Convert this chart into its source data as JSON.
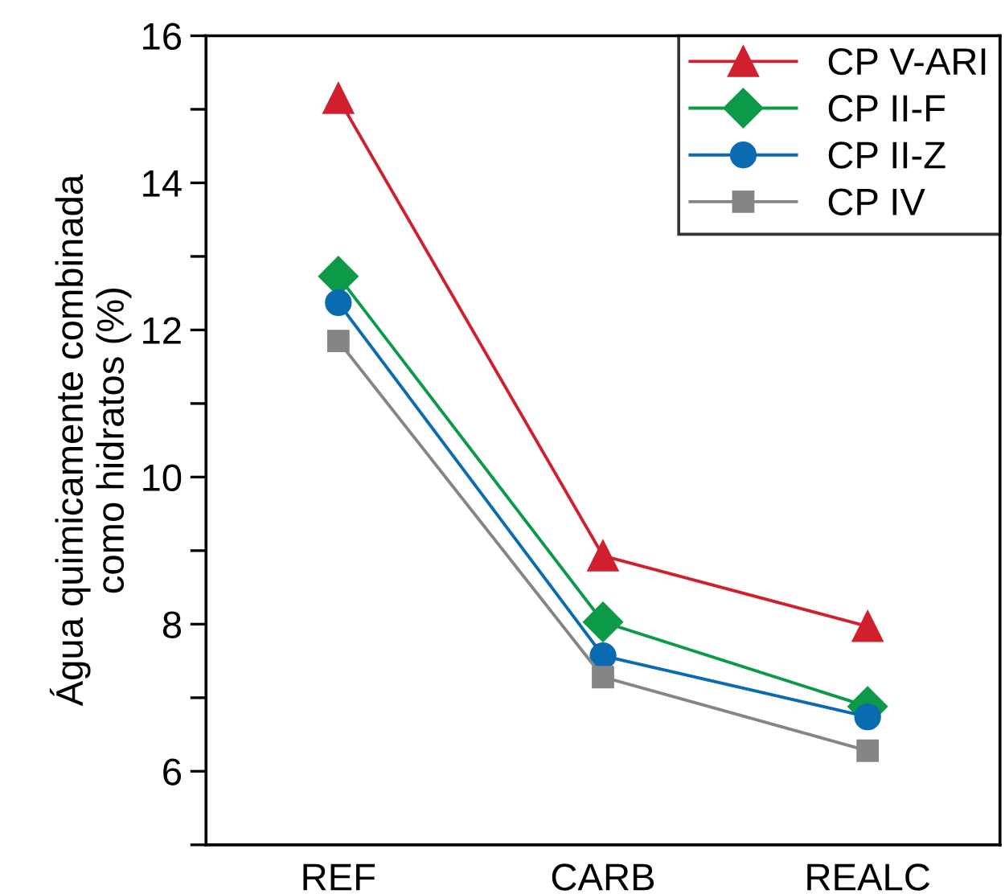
{
  "chart_data": {
    "type": "line",
    "ylabel": "Água quimicamente combinada\ncomo hidratos (%)",
    "categories": [
      "REF",
      "CARB",
      "REALC"
    ],
    "ylim": [
      5,
      16
    ],
    "yticks": [
      {
        "value": 5,
        "label": null
      },
      6,
      {
        "value": 7,
        "label": null
      },
      8,
      {
        "value": 9,
        "label": null
      },
      10,
      {
        "value": 11,
        "label": null
      },
      12,
      {
        "value": 13,
        "label": null
      },
      14,
      {
        "value": 15,
        "label": null
      },
      16
    ],
    "legend": "top right",
    "series": [
      {
        "name": "CP V-ARI",
        "color": "#d0202e",
        "marker": "triangle",
        "values": [
          15.15,
          8.93,
          7.97
        ]
      },
      {
        "name": "CP II-F",
        "color": "#0d9a48",
        "marker": "diamond",
        "values": [
          12.73,
          8.03,
          6.88
        ]
      },
      {
        "name": "CP II-Z",
        "color": "#0a6bb0",
        "marker": "circle",
        "values": [
          12.37,
          7.57,
          6.74
        ]
      },
      {
        "name": "CP IV",
        "color": "#858585",
        "marker": "square",
        "values": [
          11.85,
          7.28,
          6.28
        ]
      }
    ]
  }
}
